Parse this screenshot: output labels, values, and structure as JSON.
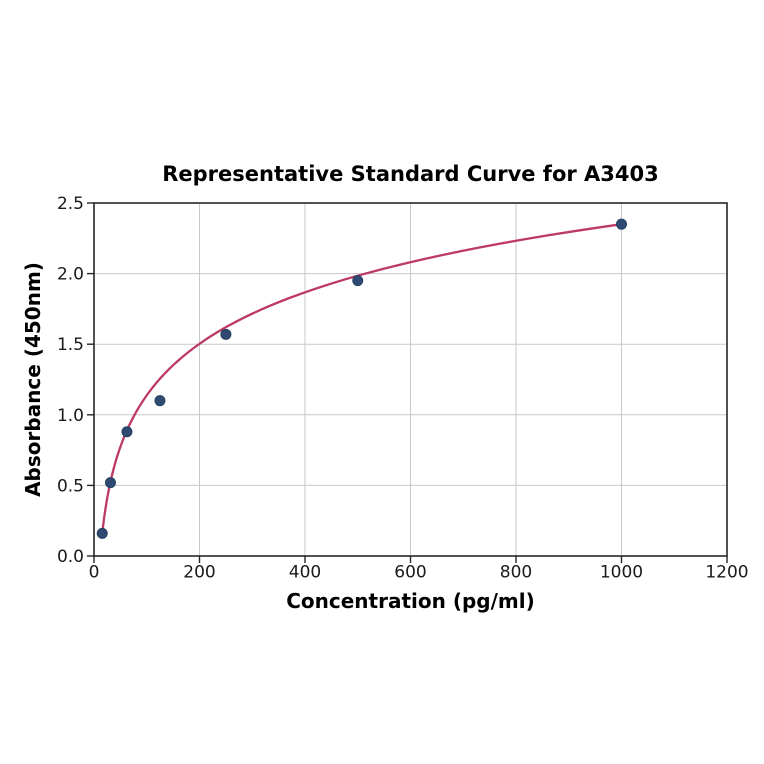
{
  "figure": {
    "background": "#ffffff"
  },
  "chart_data": {
    "type": "scatter",
    "title": "Representative Standard Curve for A3403",
    "xlabel": "Concentration (pg/ml)",
    "ylabel": "Absorbance (450nm)",
    "xlim": [
      0,
      1200
    ],
    "ylim": [
      0,
      2.5
    ],
    "x_ticks": [
      0,
      200,
      400,
      600,
      800,
      1000,
      1200
    ],
    "y_ticks": [
      0.0,
      0.5,
      1.0,
      1.5,
      2.0,
      2.5
    ],
    "grid": true,
    "legend": false,
    "points": {
      "x": [
        15.6,
        31.25,
        62.5,
        125,
        250,
        500,
        1000
      ],
      "y": [
        0.16,
        0.52,
        0.88,
        1.1,
        1.57,
        1.95,
        2.35
      ]
    },
    "fit_curve": {
      "type": "logarithmic",
      "slope_per_ln": 0.5263,
      "intercept": -1.2857,
      "x_start": 15.6,
      "x_end": 1000
    },
    "colors": {
      "curve": "#bd3a63",
      "point_fill": "#2e4a72",
      "point_edge": "#24405f",
      "grid": "#c9c9c9",
      "axis": "#262626",
      "text": "#000000"
    }
  }
}
